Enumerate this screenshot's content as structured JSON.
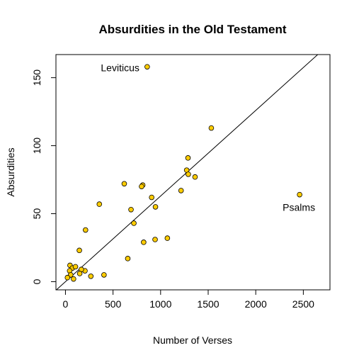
{
  "chart_data": {
    "type": "scatter",
    "title": "Absurdities in the Old Testament",
    "xlabel": "Number of Verses",
    "ylabel": "Absurdities",
    "xlim": [
      -100,
      2780
    ],
    "ylim": [
      -6,
      167
    ],
    "x_ticks": [
      0,
      500,
      1000,
      1500,
      2000,
      2500
    ],
    "y_ticks": [
      0,
      50,
      100,
      150
    ],
    "grid": false,
    "legend": "none",
    "point_fill": "#FFCC00",
    "point_stroke": "#000000",
    "points": [
      {
        "x": 859,
        "y": 158,
        "label": "Leviticus"
      },
      {
        "x": 2461,
        "y": 64,
        "label": "Psalms"
      },
      {
        "x": 1533,
        "y": 113
      },
      {
        "x": 1288,
        "y": 91
      },
      {
        "x": 1274,
        "y": 82
      },
      {
        "x": 1291,
        "y": 79
      },
      {
        "x": 1362,
        "y": 77
      },
      {
        "x": 1215,
        "y": 67
      },
      {
        "x": 618,
        "y": 72
      },
      {
        "x": 812,
        "y": 71
      },
      {
        "x": 800,
        "y": 70
      },
      {
        "x": 906,
        "y": 62
      },
      {
        "x": 946,
        "y": 55
      },
      {
        "x": 356,
        "y": 57
      },
      {
        "x": 689,
        "y": 53
      },
      {
        "x": 719,
        "y": 43
      },
      {
        "x": 211,
        "y": 38
      },
      {
        "x": 1071,
        "y": 32
      },
      {
        "x": 942,
        "y": 31
      },
      {
        "x": 822,
        "y": 29
      },
      {
        "x": 146,
        "y": 23
      },
      {
        "x": 655,
        "y": 17
      },
      {
        "x": 48,
        "y": 12
      },
      {
        "x": 73,
        "y": 10
      },
      {
        "x": 105,
        "y": 11
      },
      {
        "x": 44,
        "y": 8
      },
      {
        "x": 205,
        "y": 8
      },
      {
        "x": 167,
        "y": 9
      },
      {
        "x": 150,
        "y": 6
      },
      {
        "x": 55,
        "y": 5
      },
      {
        "x": 405,
        "y": 5
      },
      {
        "x": 267,
        "y": 4
      },
      {
        "x": 21,
        "y": 3
      },
      {
        "x": 85,
        "y": 2
      }
    ],
    "fit_line": {
      "x": [
        -100,
        2780
      ],
      "y": [
        -6.3,
        175.1
      ]
    }
  }
}
